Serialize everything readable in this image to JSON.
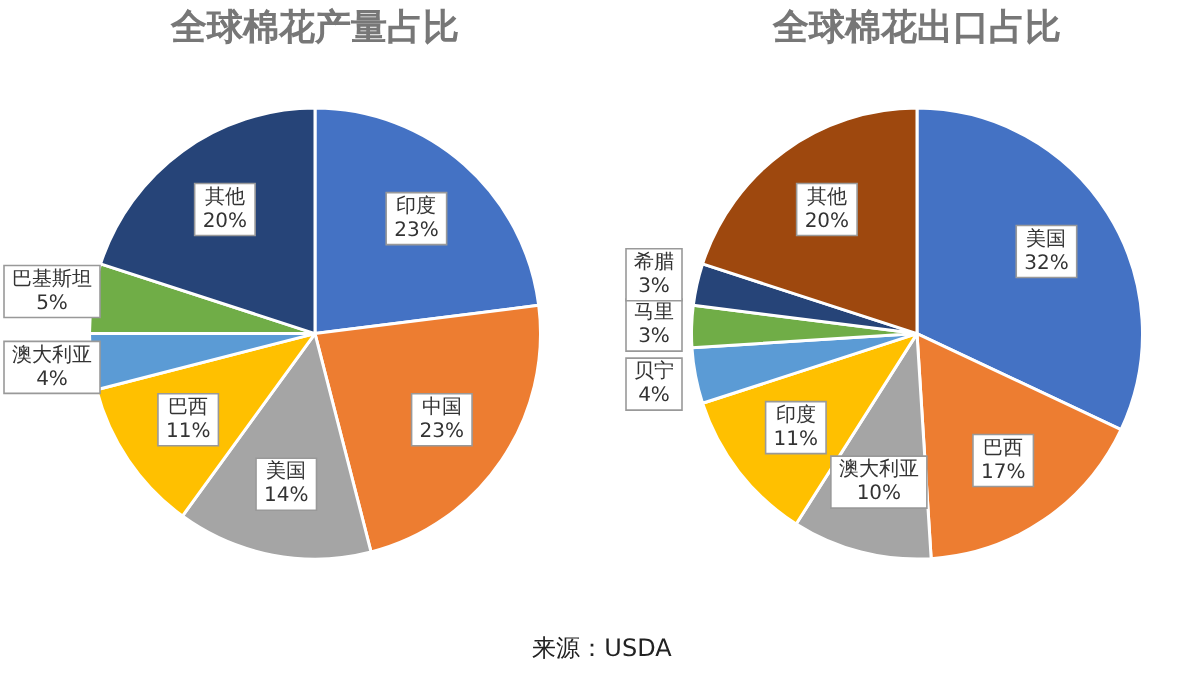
{
  "chart_data": [
    {
      "type": "pie",
      "title": "全球棉花产量占比",
      "categories": [
        "印度",
        "中国",
        "美国",
        "巴西",
        "澳大利亚",
        "巴基斯坦",
        "其他"
      ],
      "values": [
        23,
        23,
        14,
        11,
        4,
        5,
        20
      ],
      "colors": [
        "#4472c4",
        "#ed7d31",
        "#a5a5a5",
        "#ffc000",
        "#5b9bd5",
        "#70ad47",
        "#264478"
      ],
      "value_labels": [
        "23%",
        "23%",
        "14%",
        "11%",
        "4%",
        "5%",
        "20%"
      ],
      "legend": false
    },
    {
      "type": "pie",
      "title": "全球棉花出口占比",
      "categories": [
        "美国",
        "巴西",
        "澳大利亚",
        "印度",
        "贝宁",
        "马里",
        "希腊",
        "其他"
      ],
      "values": [
        32,
        17,
        10,
        11,
        4,
        3,
        3,
        20
      ],
      "colors": [
        "#4472c4",
        "#ed7d31",
        "#a5a5a5",
        "#ffc000",
        "#5b9bd5",
        "#70ad47",
        "#264478",
        "#9e480e"
      ],
      "value_labels": [
        "32%",
        "17%",
        "10%",
        "11%",
        "4%",
        "3%",
        "3%",
        "20%"
      ],
      "legend": false,
      "annotations": [
        "来源：USDA"
      ]
    }
  ]
}
